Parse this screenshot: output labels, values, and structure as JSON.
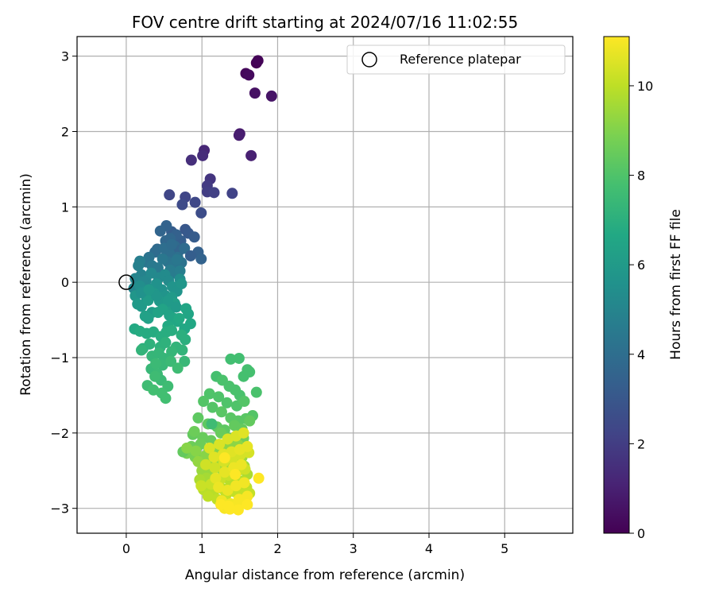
{
  "chart_data": {
    "type": "scatter",
    "title": "FOV centre drift starting at 2024/07/16 11:02:55",
    "xlabel": "Angular distance from reference (arcmin)",
    "ylabel": "Rotation from reference (arcmin)",
    "xlim": [
      -0.65,
      5.9
    ],
    "ylim": [
      -3.33,
      3.26
    ],
    "xticks": [
      "0",
      "1",
      "2",
      "3",
      "4",
      "5"
    ],
    "yticks": [
      "−3",
      "−2",
      "−1",
      "0",
      "1",
      "2",
      "3"
    ],
    "grid": true,
    "legend": {
      "label": "Reference platepar",
      "placement": "top-right"
    },
    "colorbar": {
      "label": "Hours from first FF file",
      "colormap": "viridis",
      "range": [
        0,
        11.1
      ],
      "ticks": [
        "0",
        "2",
        "4",
        "6",
        "8",
        "10"
      ]
    },
    "reference_point": {
      "x": 0,
      "y": 0
    },
    "series": [
      {
        "x": [
          1.72,
          1.74,
          1.58,
          1.62,
          1.7,
          1.92,
          1.5,
          1.49,
          1.65,
          1.03,
          1.01,
          0.86
        ],
        "y": [
          2.91,
          2.94,
          2.77,
          2.75,
          2.51,
          2.47,
          1.97,
          1.95,
          1.68,
          1.75,
          1.68,
          1.62
        ],
        "hours": [
          0.0,
          0.1,
          0.2,
          0.3,
          0.5,
          0.6,
          0.8,
          0.9,
          1.0,
          1.2,
          1.4,
          1.5
        ]
      },
      {
        "x": [
          1.11,
          1.07,
          1.07,
          1.16,
          1.4,
          0.78,
          0.91,
          0.74,
          0.99,
          0.57
        ],
        "y": [
          1.37,
          1.28,
          1.2,
          1.19,
          1.18,
          1.13,
          1.06,
          1.03,
          0.92,
          1.16
        ],
        "hours": [
          1.7,
          1.9,
          2.0,
          2.1,
          2.2,
          2.3,
          2.4,
          2.5,
          2.6,
          2.3
        ]
      },
      {
        "x": [
          0.78,
          0.82,
          0.9,
          0.6,
          0.72,
          0.95,
          0.53,
          0.66,
          0.45,
          0.52,
          0.41,
          0.38,
          0.64,
          0.7,
          0.77,
          0.57,
          0.85,
          0.68,
          0.3,
          0.26,
          0.55,
          0.62,
          0.73,
          0.99,
          0.48,
          0.34,
          0.42,
          0.58,
          0.63,
          0.71,
          0.18,
          0.16,
          0.58,
          0.5,
          0.67,
          0.6
        ],
        "y": [
          0.7,
          0.65,
          0.6,
          0.67,
          0.55,
          0.4,
          0.75,
          0.63,
          0.68,
          0.55,
          0.44,
          0.4,
          0.48,
          0.42,
          0.45,
          0.38,
          0.35,
          0.33,
          0.33,
          0.27,
          0.27,
          0.22,
          0.26,
          0.31,
          0.31,
          0.22,
          0.19,
          0.16,
          0.12,
          0.15,
          0.28,
          0.22,
          0.58,
          0.45,
          0.3,
          0.5
        ],
        "hours": [
          3.0,
          3.1,
          3.2,
          3.2,
          3.3,
          3.4,
          3.5,
          3.4,
          3.6,
          3.7,
          3.8,
          3.9,
          3.8,
          3.6,
          3.9,
          4.0,
          3.3,
          4.1,
          4.2,
          4.3,
          4.2,
          4.3,
          4.2,
          3.5,
          4.4,
          4.5,
          4.5,
          4.6,
          4.6,
          4.7,
          4.7,
          4.8,
          3.7,
          4.0,
          4.4,
          3.9
        ]
      },
      {
        "x": [
          0.2,
          0.12,
          0.1,
          0.26,
          0.22,
          0.33,
          0.43,
          0.51,
          0.56,
          0.71,
          0.18,
          0.25,
          0.36,
          0.4,
          0.47,
          0.52,
          0.61,
          0.67,
          0.73,
          0.12,
          0.27,
          0.37,
          0.44,
          0.53,
          0.6,
          0.15,
          0.2,
          0.29,
          0.34,
          0.5,
          0.57,
          0.64,
          0.2,
          0.4,
          0.55,
          0.66,
          0.3
        ],
        "y": [
          0.1,
          0.05,
          -0.08,
          0.02,
          0.0,
          0.12,
          0.06,
          0.1,
          0.02,
          0.04,
          -0.05,
          -0.12,
          -0.08,
          -0.02,
          -0.1,
          -0.18,
          -0.06,
          -0.12,
          -0.02,
          -0.18,
          -0.22,
          -0.15,
          -0.25,
          -0.32,
          -0.2,
          -0.29,
          -0.32,
          -0.24,
          -0.4,
          -0.35,
          -0.38,
          -0.28,
          -0.14,
          -0.18,
          -0.25,
          -0.33,
          -0.1
        ],
        "hours": [
          4.9,
          5.0,
          5.0,
          5.1,
          5.1,
          5.2,
          5.2,
          5.3,
          5.3,
          5.4,
          5.4,
          5.5,
          5.5,
          5.6,
          5.6,
          5.7,
          5.7,
          5.7,
          5.8,
          5.8,
          5.8,
          5.9,
          5.9,
          5.9,
          6.0,
          6.0,
          6.0,
          6.1,
          6.1,
          6.1,
          6.2,
          6.2,
          5.6,
          5.8,
          6.0,
          6.0,
          5.9
        ]
      },
      {
        "x": [
          0.25,
          0.29,
          0.42,
          0.48,
          0.57,
          0.63,
          0.79,
          0.82,
          0.85,
          0.68,
          0.77,
          0.55,
          0.7,
          0.11,
          0.18,
          0.27,
          0.36,
          0.46,
          0.53,
          0.6,
          0.73,
          0.78,
          0.22,
          0.31,
          0.45,
          0.52,
          0.66,
          0.74,
          0.2,
          0.34,
          0.43,
          0.5,
          0.6,
          0.77,
          0.48,
          0.33,
          0.39,
          0.59,
          0.41,
          0.46,
          0.55,
          0.38,
          0.68,
          0.28,
          0.36,
          0.52,
          0.47
        ],
        "y": [
          -0.45,
          -0.48,
          -0.4,
          -0.36,
          -0.44,
          -0.48,
          -0.35,
          -0.42,
          -0.55,
          -0.52,
          -0.62,
          -0.58,
          -0.48,
          -0.62,
          -0.65,
          -0.68,
          -0.66,
          -0.72,
          -0.66,
          -0.64,
          -0.7,
          -0.76,
          -0.88,
          -0.82,
          -0.86,
          -0.8,
          -0.86,
          -0.9,
          -0.9,
          -0.98,
          -0.94,
          -1.01,
          -0.92,
          -1.05,
          -1.1,
          -1.15,
          -1.08,
          -1.05,
          -1.22,
          -1.3,
          -1.38,
          -1.25,
          -1.14,
          -1.37,
          -1.43,
          -1.54,
          -1.47
        ],
        "hours": [
          6.3,
          6.3,
          6.4,
          6.4,
          6.4,
          6.5,
          6.5,
          6.5,
          6.6,
          6.6,
          6.6,
          6.7,
          6.7,
          6.7,
          6.8,
          6.8,
          6.8,
          6.9,
          6.9,
          6.9,
          7.0,
          7.0,
          7.0,
          7.1,
          7.1,
          7.1,
          7.2,
          7.2,
          7.2,
          7.3,
          7.3,
          7.3,
          7.3,
          7.4,
          7.4,
          7.4,
          7.5,
          7.5,
          7.5,
          7.5,
          7.6,
          7.6,
          7.6,
          7.6,
          7.7,
          7.7,
          7.7
        ]
      },
      {
        "x": [
          1.38,
          1.49,
          1.55,
          1.63,
          1.6,
          1.19,
          1.27,
          1.36,
          1.44,
          1.5,
          1.72,
          1.1,
          1.22,
          1.33,
          1.46,
          1.56,
          1.67,
          1.02,
          1.14,
          1.26,
          1.38,
          1.48,
          1.58,
          0.95,
          1.08,
          1.2,
          1.3,
          1.43,
          1.53,
          1.63,
          0.88,
          1.01,
          1.12,
          1.25,
          1.36,
          1.47,
          0.86,
          0.98,
          1.09,
          1.22,
          1.34,
          1.45,
          1.55,
          0.8,
          0.91,
          1.04,
          1.16,
          1.29,
          1.4,
          1.52,
          0.75,
          0.9,
          1.05,
          1.19,
          1.31,
          1.42,
          1.13,
          1.0
        ],
        "y": [
          -1.02,
          -1.01,
          -1.25,
          -1.19,
          -1.16,
          -1.25,
          -1.3,
          -1.38,
          -1.43,
          -1.5,
          -1.46,
          -1.48,
          -1.52,
          -1.6,
          -1.64,
          -1.58,
          -1.77,
          -1.58,
          -1.66,
          -1.72,
          -1.8,
          -1.84,
          -1.81,
          -1.8,
          -1.88,
          -1.92,
          -1.96,
          -1.9,
          -1.95,
          -1.84,
          -2.02,
          -2.06,
          -2.1,
          -2.0,
          -2.07,
          -2.03,
          -2.18,
          -2.15,
          -2.24,
          -2.28,
          -2.18,
          -2.12,
          -2.07,
          -2.27,
          -2.32,
          -2.38,
          -2.42,
          -2.34,
          -2.4,
          -2.3,
          -2.25,
          -1.98,
          -2.5,
          -2.22,
          -2.45,
          -2.35,
          -1.88,
          -2.35
        ],
        "hours": [
          7.7,
          7.7,
          7.8,
          7.8,
          7.8,
          7.8,
          7.9,
          7.9,
          7.9,
          7.9,
          7.9,
          8.0,
          8.0,
          8.0,
          8.0,
          8.1,
          8.1,
          8.1,
          8.1,
          8.2,
          8.2,
          8.2,
          8.2,
          8.3,
          8.3,
          8.3,
          8.3,
          8.4,
          8.4,
          8.4,
          8.4,
          8.5,
          8.5,
          8.5,
          8.5,
          8.6,
          8.6,
          8.6,
          8.6,
          8.7,
          8.7,
          8.7,
          8.7,
          8.8,
          8.8,
          8.8,
          8.8,
          8.9,
          8.9,
          8.9,
          8.4,
          8.6,
          9.0,
          9.0,
          9.0,
          9.0,
          7.6,
          8.9
        ]
      },
      {
        "x": [
          0.8,
          0.92,
          1.05,
          1.18,
          1.28,
          1.38,
          1.48,
          1.58,
          0.95,
          1.08,
          1.21,
          1.33,
          1.43,
          1.53,
          1.0,
          1.12,
          1.25,
          1.37,
          1.47,
          1.56,
          1.06,
          1.18,
          1.29,
          1.4,
          1.5,
          1.6,
          0.97,
          1.1,
          1.22,
          1.34,
          1.44,
          1.54,
          1.02,
          1.15,
          1.27,
          1.38,
          1.49,
          1.59,
          1.08,
          1.2,
          1.32,
          1.43,
          1.53,
          1.63,
          0.99,
          1.12,
          1.24,
          1.35,
          1.46,
          1.57,
          1.05,
          1.17,
          1.29,
          1.4,
          1.51,
          1.62,
          1.1,
          1.23,
          1.34,
          1.45,
          1.55,
          1.16,
          1.28,
          1.39,
          1.5,
          1.6,
          1.18,
          1.3,
          1.42,
          1.52,
          1.22,
          1.34,
          1.45,
          1.56,
          1.26,
          1.38,
          1.49,
          1.6,
          1.3,
          1.42,
          1.52,
          1.48,
          1.37,
          1.25,
          1.35,
          1.75,
          1.6,
          1.44,
          1.3
        ],
        "y": [
          -2.2,
          -2.24,
          -2.3,
          -2.22,
          -2.18,
          -2.12,
          -2.16,
          -2.2,
          -2.38,
          -2.42,
          -2.35,
          -2.3,
          -2.26,
          -2.32,
          -2.5,
          -2.54,
          -2.47,
          -2.4,
          -2.36,
          -2.44,
          -2.6,
          -2.64,
          -2.57,
          -2.52,
          -2.48,
          -2.55,
          -2.62,
          -2.7,
          -2.66,
          -2.6,
          -2.58,
          -2.64,
          -2.75,
          -2.8,
          -2.74,
          -2.68,
          -2.66,
          -2.72,
          -2.84,
          -2.88,
          -2.82,
          -2.78,
          -2.75,
          -2.8,
          -2.7,
          -2.68,
          -2.62,
          -2.56,
          -2.52,
          -2.48,
          -2.42,
          -2.46,
          -2.38,
          -2.34,
          -2.29,
          -2.26,
          -2.2,
          -2.15,
          -2.08,
          -2.04,
          -2.0,
          -2.32,
          -2.28,
          -2.25,
          -2.22,
          -2.18,
          -2.6,
          -2.52,
          -2.46,
          -2.42,
          -2.72,
          -2.76,
          -2.7,
          -2.66,
          -2.9,
          -2.94,
          -2.88,
          -2.84,
          -3.0,
          -2.98,
          -2.92,
          -3.02,
          -3.01,
          -2.95,
          -2.97,
          -2.6,
          -2.95,
          -2.55,
          -2.33
        ],
        "hours": [
          9.1,
          9.1,
          9.1,
          9.1,
          9.2,
          9.2,
          9.2,
          9.2,
          9.3,
          9.3,
          9.3,
          9.3,
          9.4,
          9.4,
          9.4,
          9.4,
          9.5,
          9.5,
          9.5,
          9.5,
          9.6,
          9.6,
          9.6,
          9.6,
          9.7,
          9.7,
          9.7,
          9.7,
          9.8,
          9.8,
          9.8,
          9.8,
          9.9,
          9.9,
          9.9,
          9.9,
          10.0,
          10.0,
          10.0,
          10.0,
          10.1,
          10.1,
          10.1,
          10.1,
          10.2,
          10.2,
          10.2,
          10.2,
          10.3,
          10.3,
          10.3,
          10.3,
          10.4,
          10.4,
          10.4,
          10.4,
          10.5,
          10.5,
          10.5,
          10.5,
          10.6,
          10.6,
          10.6,
          10.6,
          10.7,
          10.7,
          10.7,
          10.7,
          10.8,
          10.8,
          10.8,
          10.8,
          10.9,
          10.9,
          10.9,
          10.9,
          11.0,
          11.0,
          11.0,
          11.0,
          11.0,
          11.1,
          11.1,
          11.1,
          11.1,
          11.1,
          11.1,
          11.1,
          11.1
        ]
      }
    ]
  }
}
